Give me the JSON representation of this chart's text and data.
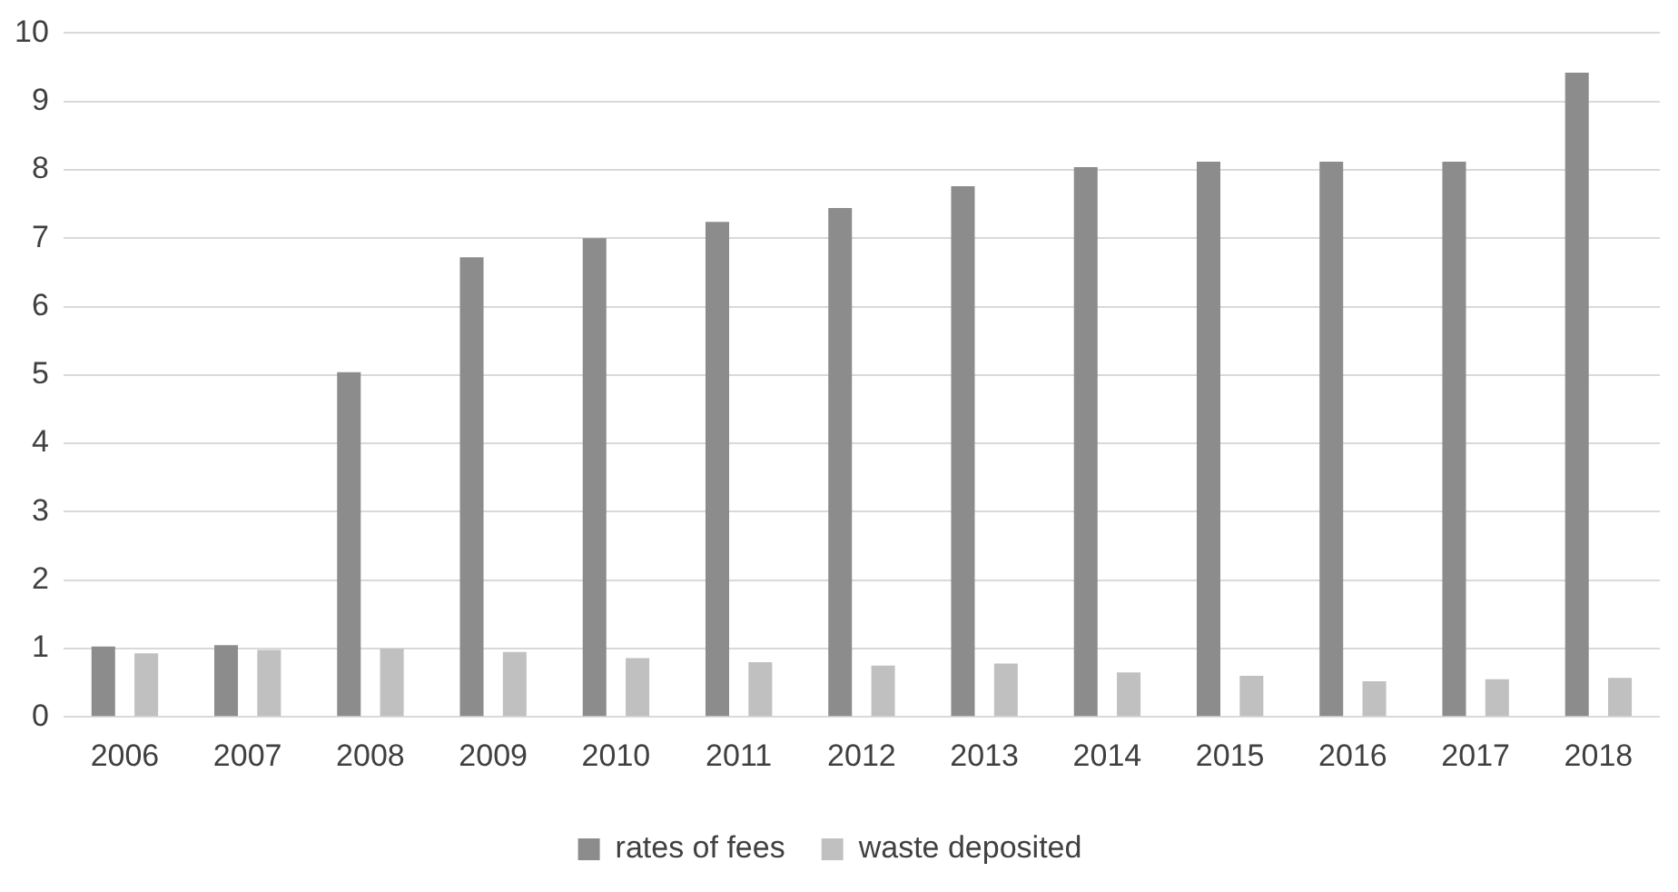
{
  "chart_data": {
    "type": "bar",
    "categories": [
      "2006",
      "2007",
      "2008",
      "2009",
      "2010",
      "2011",
      "2012",
      "2013",
      "2014",
      "2015",
      "2016",
      "2017",
      "2018"
    ],
    "series": [
      {
        "name": "rates of fees",
        "color": "#8c8c8c",
        "values": [
          1.03,
          1.05,
          5.04,
          6.72,
          7.0,
          7.24,
          7.44,
          7.76,
          8.04,
          8.12,
          8.12,
          8.12,
          9.42
        ]
      },
      {
        "name": "waste deposited",
        "color": "#c0c0c0",
        "values": [
          0.93,
          0.98,
          1.0,
          0.95,
          0.86,
          0.8,
          0.75,
          0.78,
          0.65,
          0.6,
          0.52,
          0.55,
          0.57
        ]
      }
    ],
    "ylim": [
      0,
      10
    ],
    "yticks": [
      0,
      1,
      2,
      3,
      4,
      5,
      6,
      7,
      8,
      9,
      10
    ],
    "grid": "y",
    "legend": "bottom"
  }
}
